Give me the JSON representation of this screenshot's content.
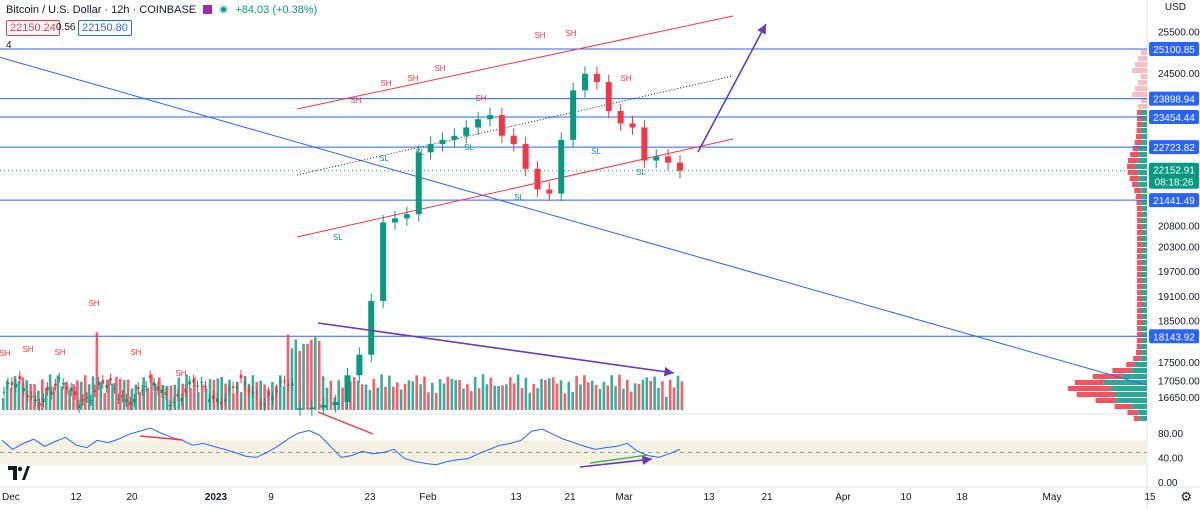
{
  "header": {
    "title": "Bitcoin / U.S. Dollar · 12h · COINBASE",
    "change": "+84.03 (+0.38%)",
    "sell_price": "22150.24",
    "spread": "0.56",
    "buy_price": "22150.80",
    "indicator_count": "4",
    "currency": "USD"
  },
  "colors": {
    "up": "#089981",
    "down": "#f23645",
    "level_line": "#2962ff",
    "channel": "#f23645",
    "arrow": "#673ab7",
    "rsi_line": "#2962ff",
    "rsi_band": "#f3f1e2"
  },
  "chart_data": {
    "type": "line",
    "title": "Bitcoin / U.S. Dollar · 12h · COINBASE",
    "xlabel": "",
    "ylabel": "",
    "x_ticks": [
      "Dec",
      "12",
      "20",
      "2023",
      "9",
      "23",
      "Feb",
      "13",
      "21",
      "Mar",
      "13",
      "21",
      "Apr",
      "10",
      "18",
      "May",
      "15"
    ],
    "y_ticks": [
      25500,
      25100.85,
      24500,
      23898.94,
      23454.44,
      22723.82,
      22152.91,
      21441.49,
      20800,
      20300,
      19700,
      19100,
      18500,
      18143.92,
      17500,
      17050,
      16650
    ],
    "ylim": [
      16400,
      26000
    ],
    "horizontal_levels": [
      25100.85,
      23898.94,
      23454.44,
      22723.82,
      21441.49,
      18143.92
    ],
    "last_price": 22152.91,
    "countdown": "08:18:26",
    "swing_labels_high": "SH",
    "swing_labels_low": "SL",
    "series": [
      {
        "values": [
          16400,
          16420,
          16480,
          16550,
          17200,
          17700,
          19000,
          20900,
          21000,
          21100,
          22600,
          22800,
          22900,
          23000,
          23200,
          23400,
          23500,
          23000,
          22800,
          22200,
          21700,
          21600,
          22900,
          24100,
          24500,
          24300,
          23600,
          23300,
          23200,
          22400,
          22500,
          22350,
          22153
        ]
      }
    ],
    "rsi": {
      "ylim": [
        0,
        100
      ],
      "y_ticks": [
        80,
        40,
        0
      ],
      "band": [
        30,
        70
      ],
      "mid": 50,
      "values": [
        70,
        55,
        65,
        72,
        60,
        68,
        75,
        62,
        58,
        70,
        66,
        72,
        80,
        85,
        90,
        82,
        75,
        70,
        62,
        65,
        60,
        55,
        50,
        44,
        42,
        50,
        60,
        72,
        82,
        86,
        78,
        60,
        42,
        45,
        52,
        48,
        50,
        55,
        40,
        35,
        32,
        30,
        35,
        38,
        40,
        48,
        55,
        62,
        65,
        70,
        85,
        88,
        80,
        72,
        66,
        60,
        55,
        58,
        60,
        65,
        52,
        45,
        42,
        48,
        55
      ]
    }
  }
}
